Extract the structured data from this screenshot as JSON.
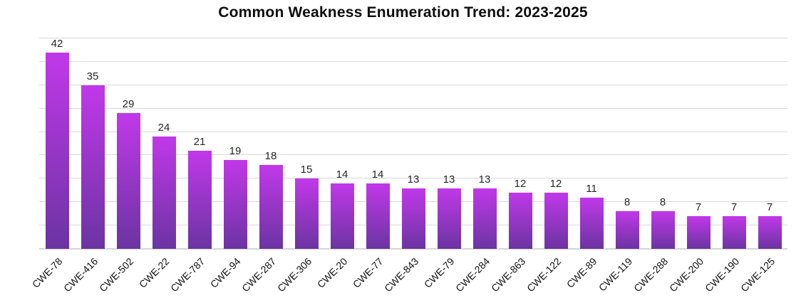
{
  "chart_data": {
    "type": "bar",
    "title": "Common Weakness Enumeration Trend: 2023-2025",
    "categories": [
      "CWE-78",
      "CWE-416",
      "CWE-502",
      "CWE-22",
      "CWE-787",
      "CWE-94",
      "CWE-287",
      "CWE-306",
      "CWE-20",
      "CWE-77",
      "CWE-843",
      "CWE-79",
      "CWE-284",
      "CWE-863",
      "CWE-122",
      "CWE-89",
      "CWE-119",
      "CWE-288",
      "CWE-200",
      "CWE-190",
      "CWE-125"
    ],
    "values": [
      42,
      35,
      29,
      24,
      21,
      19,
      18,
      15,
      14,
      14,
      13,
      13,
      13,
      12,
      12,
      11,
      8,
      8,
      7,
      7,
      7
    ],
    "xlabel": "",
    "ylabel": "",
    "ylim": [
      0,
      45
    ],
    "grid_interval": 5,
    "grid": "on",
    "legend": "none",
    "data_labels": "above bars",
    "colors": {
      "bar_gradient_top": "#c138e9",
      "bar_gradient_bottom": "#6b34a2",
      "gridline": "#d9d9d9",
      "title_text": "#0d0d0d",
      "value_label_text": "#262626",
      "tick_label_text": "#111111",
      "background": "#ffffff"
    }
  }
}
